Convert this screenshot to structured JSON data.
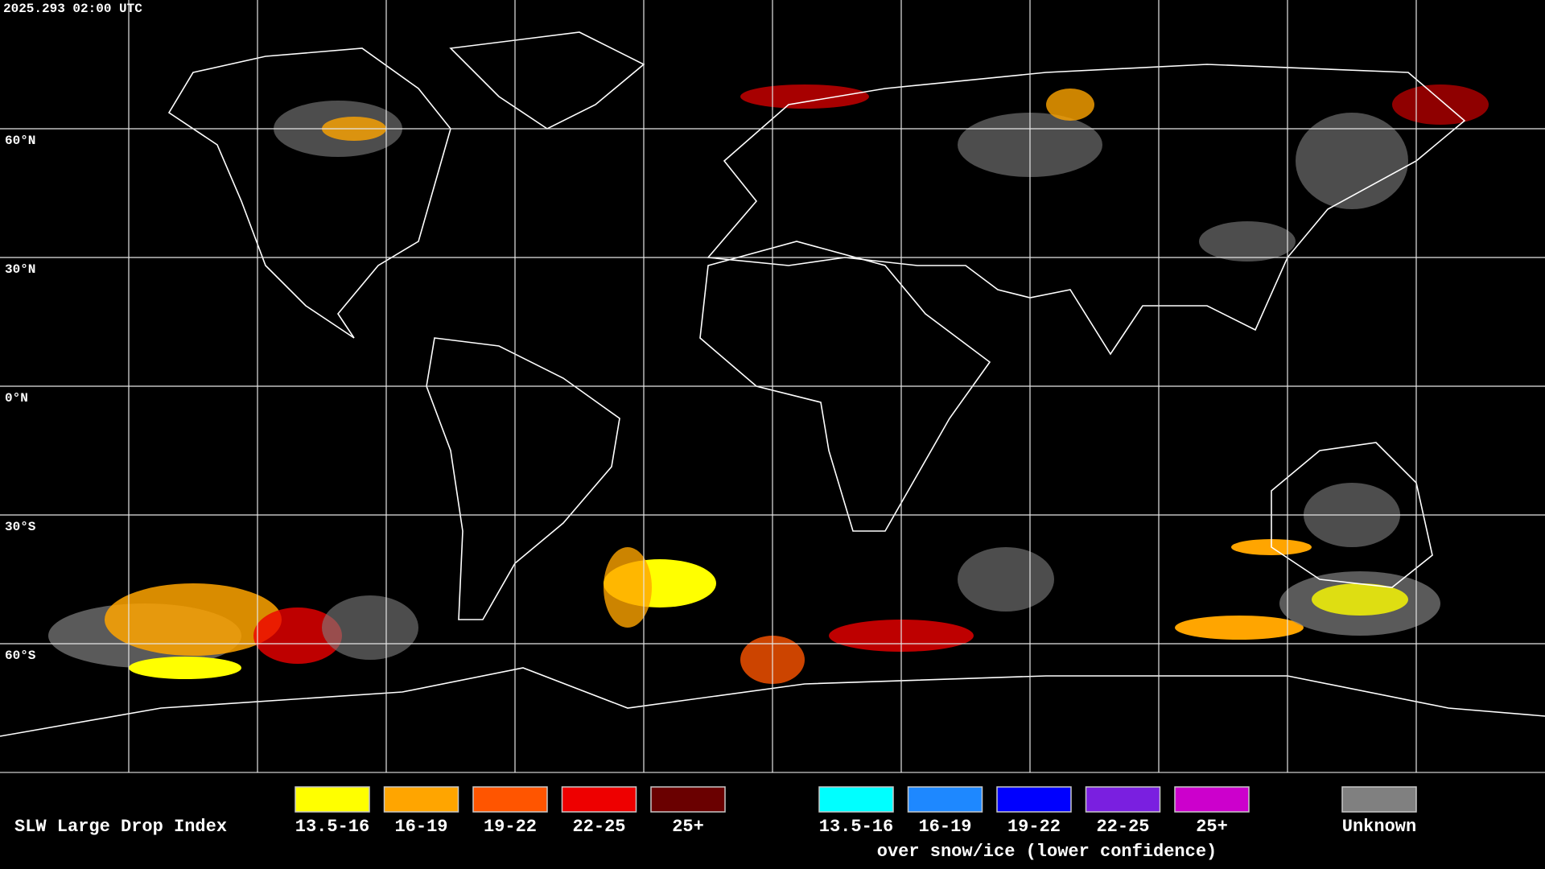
{
  "header": {
    "timestamp": "2025.293 02:00 UTC"
  },
  "map": {
    "latitude_lines": [
      {
        "value": 60,
        "label": "60°N"
      },
      {
        "value": 30,
        "label": "30°N"
      },
      {
        "value": 0,
        "label": "0°N"
      },
      {
        "value": -30,
        "label": "30°S"
      },
      {
        "value": -60,
        "label": "60°S"
      }
    ]
  },
  "legend": {
    "title": "SLW Large Drop Index",
    "groups": [
      {
        "entries": [
          {
            "label": "13.5-16",
            "color": "#ffff00"
          },
          {
            "label": "16-19",
            "color": "#ffa500"
          },
          {
            "label": "19-22",
            "color": "#ff5500"
          },
          {
            "label": "22-25",
            "color": "#ee0000"
          },
          {
            "label": "25+",
            "color": "#6a0000"
          }
        ]
      },
      {
        "note": "over snow/ice (lower confidence)",
        "entries": [
          {
            "label": "13.5-16",
            "color": "#00ffff"
          },
          {
            "label": "16-19",
            "color": "#1e88ff"
          },
          {
            "label": "19-22",
            "color": "#0000ff"
          },
          {
            "label": "22-25",
            "color": "#7a1fe0"
          },
          {
            "label": "25+",
            "color": "#cc00cc"
          }
        ]
      },
      {
        "entries": [
          {
            "label": "Unknown",
            "color": "#808080"
          }
        ]
      }
    ]
  }
}
